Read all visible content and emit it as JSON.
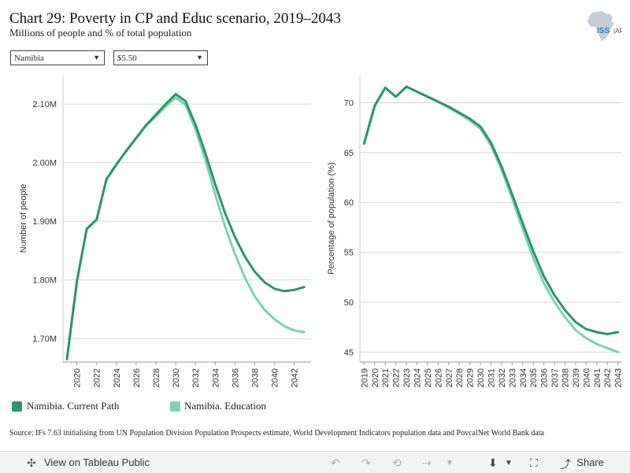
{
  "header": {
    "title": "Chart 29: Poverty in CP and Educ scenario, 2019–2043",
    "subtitle": "Millions of people and % of total population",
    "logo_text": "ISS AFRICAN FUTURES"
  },
  "filters": {
    "country": "Namibia",
    "poverty_line": "$5.50"
  },
  "colors": {
    "current_path": "#2f9468",
    "education": "#7bd3b0",
    "grid": "#d9d9d9"
  },
  "legend": {
    "current_path": "Namibia. Current Path",
    "education": "Namibia. Education"
  },
  "source": "Source: IFs 7.63 initialising from UN Population Division Population Prospects estimate, World Development Indicators population data and PovcalNet World Bank data",
  "footer": {
    "view_label": "View on Tableau Public",
    "share_label": "Share"
  },
  "chart_data": [
    {
      "type": "line",
      "xlabel": "",
      "ylabel": "Number of people",
      "x": [
        2019,
        2020,
        2021,
        2022,
        2023,
        2024,
        2025,
        2026,
        2027,
        2028,
        2029,
        2030,
        2031,
        2032,
        2033,
        2034,
        2035,
        2036,
        2037,
        2038,
        2039,
        2040,
        2041,
        2042,
        2043
      ],
      "xticks": [
        "2020",
        "2022",
        "2024",
        "2026",
        "2028",
        "2030",
        "2032",
        "2034",
        "2036",
        "2038",
        "2040",
        "2042"
      ],
      "yticks": [
        "1.70M",
        "1.80M",
        "1.90M",
        "2.00M",
        "2.10M"
      ],
      "ylim": [
        1.66,
        2.15
      ],
      "series": [
        {
          "name": "Namibia. Current Path",
          "values": [
            1.665,
            1.797,
            1.887,
            1.903,
            1.972,
            1.997,
            2.02,
            2.042,
            2.064,
            2.082,
            2.1,
            2.117,
            2.105,
            2.065,
            2.017,
            1.963,
            1.914,
            1.873,
            1.84,
            1.814,
            1.796,
            1.785,
            1.781,
            1.783,
            1.788
          ]
        },
        {
          "name": "Namibia. Education",
          "values": [
            1.665,
            1.797,
            1.887,
            1.903,
            1.972,
            1.997,
            2.02,
            2.042,
            2.063,
            2.079,
            2.096,
            2.111,
            2.099,
            2.057,
            2.005,
            1.946,
            1.891,
            1.844,
            1.804,
            1.772,
            1.749,
            1.733,
            1.721,
            1.714,
            1.711
          ]
        }
      ]
    },
    {
      "type": "line",
      "xlabel": "",
      "ylabel": "Percentage of population (%)",
      "x": [
        2019,
        2020,
        2021,
        2022,
        2023,
        2024,
        2025,
        2026,
        2027,
        2028,
        2029,
        2030,
        2031,
        2032,
        2033,
        2034,
        2035,
        2036,
        2037,
        2038,
        2039,
        2040,
        2041,
        2042,
        2043
      ],
      "xticks": [
        "2019",
        "2020",
        "2021",
        "2022",
        "2023",
        "2024",
        "2025",
        "2026",
        "2027",
        "2028",
        "2029",
        "2030",
        "2031",
        "2032",
        "2033",
        "2034",
        "2035",
        "2036",
        "2037",
        "2038",
        "2039",
        "2040",
        "2041",
        "2042",
        "2043"
      ],
      "yticks": [
        "45",
        "50",
        "55",
        "60",
        "65",
        "70"
      ],
      "ylim": [
        44.0,
        72.8
      ],
      "series": [
        {
          "name": "Namibia. Current Path",
          "values": [
            65.9,
            69.7,
            71.5,
            70.6,
            71.6,
            71.1,
            70.6,
            70.1,
            69.6,
            69.0,
            68.4,
            67.6,
            66.0,
            63.6,
            60.8,
            57.9,
            55.1,
            52.6,
            50.7,
            49.2,
            48.0,
            47.3,
            47.0,
            46.8,
            47.0
          ]
        },
        {
          "name": "Namibia. Education",
          "values": [
            65.9,
            69.7,
            71.5,
            70.6,
            71.6,
            71.1,
            70.6,
            70.1,
            69.5,
            68.9,
            68.2,
            67.4,
            65.7,
            63.3,
            60.4,
            57.3,
            54.4,
            51.9,
            50.0,
            48.5,
            47.2,
            46.4,
            45.8,
            45.4,
            45.0
          ]
        }
      ]
    }
  ]
}
